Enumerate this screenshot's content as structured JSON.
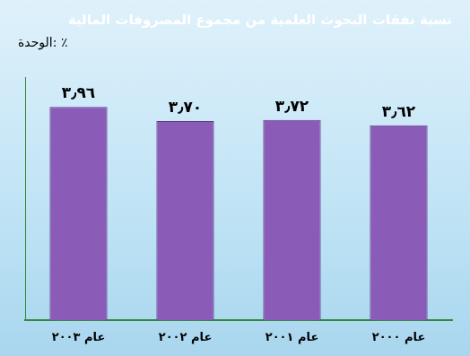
{
  "chart_data": {
    "type": "bar",
    "title": "نسبة نفقات البحوث العلمية من مجموع المصروفات المالية",
    "subtitle": "الوحدة: ٪",
    "categories": [
      "عام ٢٠٠٣",
      "عام ٢٠٠٢",
      "عام ٢٠٠١",
      "عام ٢٠٠٠"
    ],
    "values": [
      3.96,
      3.7,
      3.72,
      3.62
    ],
    "value_labels": [
      "٣٫٩٦",
      "٣٫٧٠",
      "٣٫٧٢",
      "٣٫٦٢"
    ],
    "color": "#8a5cb8",
    "ylim": [
      0,
      4.5
    ],
    "data_labels": true,
    "tick_labels": "x",
    "grid": false
  }
}
